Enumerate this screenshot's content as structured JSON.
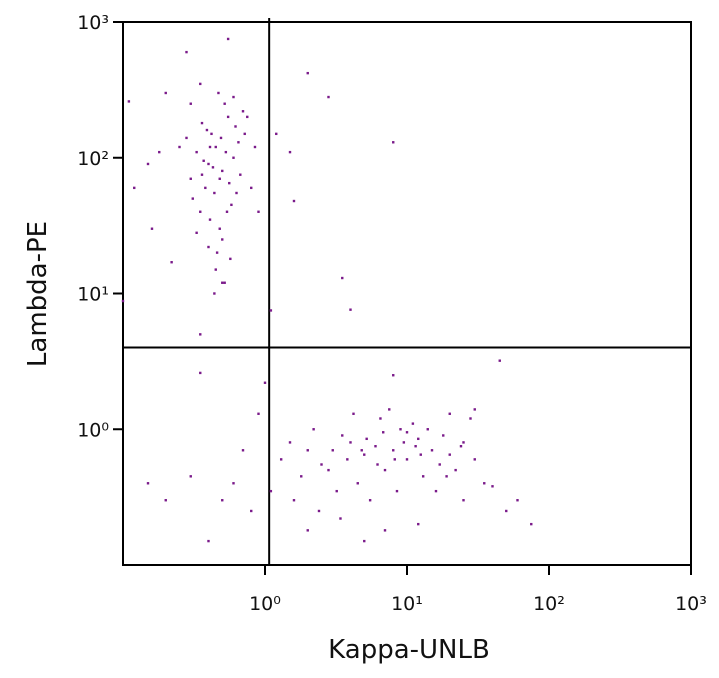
{
  "chart_data": {
    "type": "scatter",
    "xlabel": "Kappa-UNLB",
    "ylabel": "Lambda-PE",
    "log_x": true,
    "log_y": true,
    "color": "#7a1a8a",
    "xlim": [
      0.1,
      1000
    ],
    "ylim": [
      0.1,
      1000
    ],
    "xticks": [
      {
        "value": 1,
        "label": "10⁰"
      },
      {
        "value": 10,
        "label": "10¹"
      },
      {
        "value": 100,
        "label": "10²"
      },
      {
        "value": 1000,
        "label": "10³"
      }
    ],
    "yticks": [
      {
        "value": 1,
        "label": "10⁰"
      },
      {
        "value": 10,
        "label": "10¹"
      },
      {
        "value": 100,
        "label": "10²"
      },
      {
        "value": 1000,
        "label": "10³"
      }
    ],
    "gate": {
      "x": 1.07,
      "y": 4.0
    },
    "x": [
      0.45,
      0.5,
      0.38,
      0.55,
      0.42,
      0.6,
      0.35,
      0.48,
      0.52,
      0.4,
      0.3,
      0.65,
      0.44,
      0.58,
      0.36,
      0.47,
      0.33,
      0.62,
      0.5,
      0.41,
      0.56,
      0.28,
      0.7,
      0.46,
      0.39,
      0.53,
      0.31,
      0.67,
      0.43,
      0.6,
      0.49,
      0.37,
      0.54,
      0.25,
      0.72,
      0.45,
      0.5,
      0.4,
      0.3,
      0.35,
      0.28,
      0.55,
      0.2,
      0.18,
      0.15,
      0.12,
      0.16,
      0.22,
      0.8,
      0.85,
      0.9,
      0.75,
      0.33,
      0.57,
      0.44,
      0.52,
      0.63,
      0.48,
      0.41,
      0.36,
      1.2,
      1.5,
      1.6,
      2.0,
      2.8,
      8,
      3.5,
      4,
      1.1,
      0.35,
      0.1,
      0.11,
      3,
      5,
      4,
      6,
      8,
      10,
      12,
      2.5,
      3.5,
      7,
      9,
      15,
      20,
      25,
      2,
      1.8,
      4.5,
      6.5,
      11,
      13,
      18,
      22,
      30,
      35,
      1.5,
      1.3,
      2.2,
      3.2,
      5.5,
      8.5,
      16,
      28,
      4.2,
      7.5,
      10,
      14,
      17,
      24,
      3.8,
      5.2,
      6.2,
      9.5,
      12.5,
      19,
      2.8,
      4.8,
      6.8,
      8.2,
      11.5,
      1.6,
      2.4,
      3.4,
      12,
      50,
      75,
      40,
      45,
      8,
      0.5,
      0.4,
      0.3,
      0.15,
      0.2,
      0.35,
      0.7,
      0.9,
      1,
      0.6,
      0.8,
      1.1,
      2,
      5,
      7,
      30,
      20,
      25,
      60
    ],
    "values": [
      120,
      80,
      60,
      200,
      150,
      100,
      40,
      30,
      250,
      90,
      70,
      130,
      55,
      45,
      180,
      300,
      110,
      170,
      25,
      35,
      65,
      140,
      220,
      20,
      160,
      110,
      50,
      75,
      85,
      280,
      140,
      95,
      40,
      120,
      150,
      15,
      12,
      22,
      250,
      350,
      600,
      750,
      300,
      110,
      90,
      60,
      30,
      17,
      60,
      120,
      40,
      200,
      28,
      18,
      10,
      12,
      55,
      70,
      120,
      75,
      150,
      110,
      48,
      420,
      280,
      130,
      13,
      7.6,
      7.5,
      5,
      8.8,
      260,
      0.7,
      0.65,
      0.8,
      0.75,
      0.7,
      0.6,
      0.85,
      0.55,
      0.9,
      0.5,
      1.0,
      0.7,
      0.65,
      0.8,
      0.7,
      0.45,
      0.4,
      1.2,
      1.1,
      0.45,
      0.9,
      0.5,
      0.6,
      0.4,
      0.8,
      0.6,
      1.0,
      0.35,
      0.3,
      0.35,
      0.35,
      1.2,
      1.3,
      1.4,
      0.95,
      1.0,
      0.55,
      0.75,
      0.6,
      0.85,
      0.55,
      0.8,
      0.65,
      0.45,
      0.5,
      0.7,
      0.95,
      0.6,
      0.75,
      0.3,
      0.25,
      0.22,
      0.2,
      0.25,
      0.2,
      0.38,
      3.2,
      2.5,
      0.3,
      0.15,
      0.45,
      0.4,
      0.3,
      2.6,
      0.7,
      1.3,
      2.2,
      0.4,
      0.25,
      0.35,
      0.18,
      0.15,
      0.18,
      1.4,
      1.3,
      0.3,
      0.3
    ]
  }
}
